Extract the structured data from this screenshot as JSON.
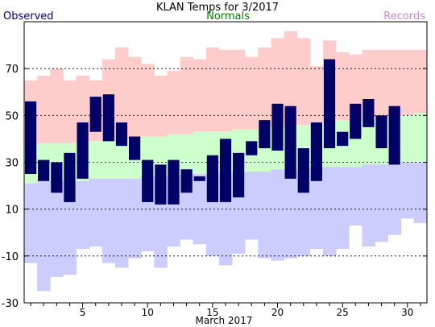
{
  "chart_data": {
    "type": "bar",
    "title": "KLAN Temps for 3/2017",
    "legend": {
      "observed_label": "Observed",
      "normals_label": "Normals",
      "records_label": "Records",
      "placement": "top"
    },
    "xlabel": "March 2017",
    "x_ticks": [
      5,
      10,
      15,
      20,
      25,
      30
    ],
    "y_ticks": [
      -30,
      -10,
      10,
      30,
      50,
      70
    ],
    "ylim": [
      -30,
      90
    ],
    "xlim": [
      0.5,
      31.5
    ],
    "grid": "dashed horizontal at labeled y ticks",
    "colors": {
      "observed": "#000066",
      "normals": "#ccffcc",
      "record_high_band": "#ffcccc",
      "record_low_band": "#ccccff",
      "observed_legend_text": "#000080",
      "normals_legend_text": "#008000",
      "records_legend_text": "#cc88cc",
      "grid": "#000000"
    },
    "days": [
      1,
      2,
      3,
      4,
      5,
      6,
      7,
      8,
      9,
      10,
      11,
      12,
      13,
      14,
      15,
      16,
      17,
      18,
      19,
      20,
      21,
      22,
      23,
      24,
      25,
      26,
      27,
      28,
      29,
      30,
      31
    ],
    "record_high": [
      65,
      67,
      70,
      65,
      67,
      65,
      74,
      79,
      75,
      72,
      67,
      69,
      75,
      74,
      79,
      78,
      78,
      75,
      79,
      83,
      86,
      83,
      71,
      82,
      77,
      76,
      78,
      78,
      78,
      78,
      78
    ],
    "normal_high": [
      37,
      38,
      38,
      38,
      39,
      39,
      39,
      40,
      40,
      41,
      41,
      42,
      42,
      43,
      43,
      43,
      44,
      44,
      45,
      45,
      46,
      46,
      47,
      47,
      48,
      48,
      49,
      49,
      50,
      50,
      51
    ],
    "normal_low": [
      21,
      22,
      22,
      22,
      22,
      23,
      23,
      23,
      23,
      24,
      24,
      24,
      25,
      25,
      25,
      26,
      26,
      26,
      26,
      27,
      27,
      27,
      28,
      28,
      28,
      28,
      29,
      29,
      29,
      30,
      30
    ],
    "record_low": [
      -13,
      -25,
      -19,
      -18,
      -7,
      -6,
      -13,
      -15,
      -11,
      -8,
      -15,
      -6,
      -3,
      -5,
      -10,
      -14,
      -9,
      -3,
      -11,
      -12,
      -11,
      -10,
      -7,
      -10,
      -7,
      3,
      -6,
      -4,
      -1,
      6,
      4
    ],
    "observed_high": [
      56,
      31,
      30,
      34,
      47,
      58,
      59,
      47,
      41,
      31,
      29,
      31,
      27,
      24,
      33,
      40,
      34,
      39,
      48,
      55,
      54,
      36,
      47,
      74,
      43,
      55,
      57,
      50,
      54,
      null,
      null
    ],
    "observed_low": [
      25,
      22,
      17,
      13,
      23,
      43,
      39,
      37,
      31,
      13,
      12,
      12,
      17,
      22,
      13,
      13,
      15,
      33,
      36,
      35,
      23,
      17,
      22,
      36,
      37,
      40,
      45,
      36,
      29,
      null,
      null
    ]
  }
}
